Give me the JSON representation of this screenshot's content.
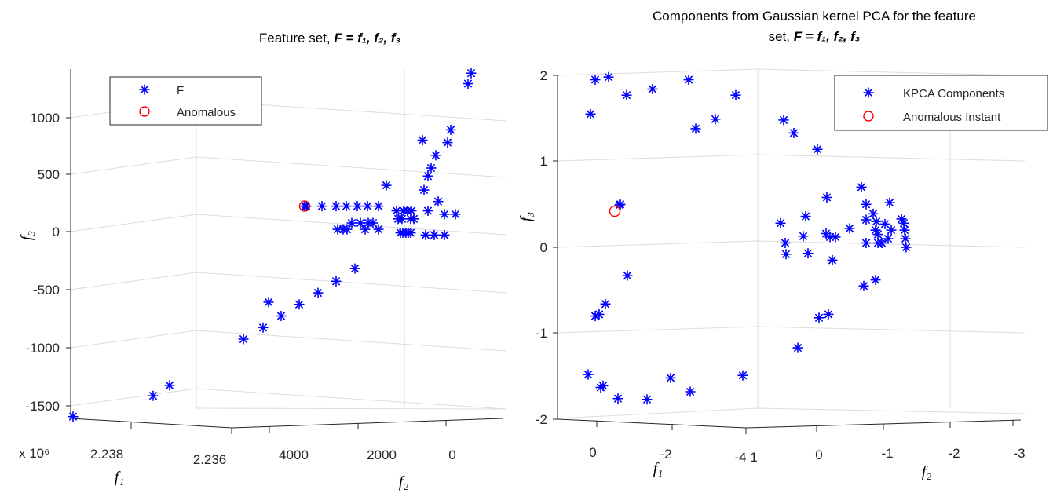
{
  "chart_data": [
    {
      "type": "scatter",
      "title": {
        "prefix": "Feature set, ",
        "formula": "F = f₁, f₂, f₃"
      },
      "xlabel": "f₁",
      "ylabel": "f₂",
      "zlabel": "f₃",
      "exponent_label": "x 10⁶",
      "f1_ticks": [
        "2.238",
        "2.236"
      ],
      "f2_ticks": [
        "4000",
        "2000",
        "0"
      ],
      "f3_ticks": [
        "1000",
        "500",
        "0",
        "-500",
        "-1000",
        "-1500"
      ],
      "legend": {
        "placement": "top-left",
        "entries": [
          "F",
          "Anomalous"
        ]
      },
      "grid": true,
      "series": [
        {
          "name": "F",
          "marker": "asterisk",
          "color": "#0000ff",
          "points": [
            [
              -1600,
              93
            ],
            [
              -1420,
              195
            ],
            [
              -1330,
              216
            ],
            [
              -930,
              310
            ],
            [
              -830,
              335
            ],
            [
              -730,
              358
            ],
            [
              -610,
              342
            ],
            [
              -630,
              381
            ],
            [
              -530,
              405
            ],
            [
              -430,
              428
            ],
            [
              -320,
              452
            ],
            [
              220,
              390
            ],
            [
              220,
              410
            ],
            [
              220,
              428
            ],
            [
              220,
              441
            ],
            [
              220,
              455
            ],
            [
              220,
              468
            ],
            [
              220,
              482
            ],
            [
              75,
              448
            ],
            [
              75,
              459
            ],
            [
              75,
              475
            ],
            [
              75,
              469
            ],
            [
              20,
              430
            ],
            [
              20,
              437
            ],
            [
              20,
              442
            ],
            [
              20,
              465
            ],
            [
              20,
              482
            ],
            [
              400,
              492
            ],
            [
              180,
              505
            ],
            [
              180,
              514
            ],
            [
              180,
              519
            ],
            [
              180,
              524
            ],
            [
              180,
              545
            ],
            [
              110,
              507
            ],
            [
              110,
              512
            ],
            [
              110,
              523
            ],
            [
              110,
              527
            ],
            [
              -10,
              510
            ],
            [
              -10,
              513
            ],
            [
              -10,
              517
            ],
            [
              -10,
              520
            ],
            [
              -10,
              523
            ],
            [
              -30,
              542
            ],
            [
              -30,
              553
            ],
            [
              -30,
              566
            ],
            [
              260,
              558
            ],
            [
              150,
              566
            ],
            [
              150,
              580
            ],
            [
              360,
              540
            ],
            [
              480,
              545
            ],
            [
              550,
              549
            ],
            [
              660,
              555
            ],
            [
              770,
              570
            ],
            [
              790,
              538
            ],
            [
              880,
              574
            ],
            [
              1280,
              596
            ],
            [
              1370,
              600
            ]
          ]
        }
      ],
      "anomalous": [
        [
          220,
          388
        ]
      ]
    },
    {
      "type": "scatter",
      "title": {
        "line1": "Components from Gaussian kernel PCA for the feature",
        "line2_prefix": "set, ",
        "formula": "F = f₁, f₂, f₃"
      },
      "xlabel": "f₁",
      "ylabel": "f₂",
      "zlabel": "f₃",
      "f1_ticks": [
        "0",
        "-2",
        "-4"
      ],
      "f2_ticks": [
        "1",
        "0",
        "-1",
        "-2",
        "-3"
      ],
      "f3_ticks": [
        "2",
        "1",
        "0",
        "-1",
        "-2"
      ],
      "legend": {
        "placement": "top-right",
        "entries": [
          "KPCA Components",
          "Anomalous Instant"
        ]
      },
      "grid": true,
      "series": [
        {
          "name": "KPCA Components",
          "marker": "asterisk",
          "color": "#0000ff",
          "points": [
            [
              1.95,
              758
            ],
            [
              1.98,
              775
            ],
            [
              1.77,
              798
            ],
            [
              1.84,
              831
            ],
            [
              1.95,
              877
            ],
            [
              1.38,
              886
            ],
            [
              1.49,
              911
            ],
            [
              1.77,
              937
            ],
            [
              1.55,
              752
            ],
            [
              1.48,
              998
            ],
            [
              1.33,
              1011
            ],
            [
              1.14,
              1041
            ],
            [
              0.5,
              790
            ],
            [
              -0.33,
              799
            ],
            [
              -0.66,
              771
            ],
            [
              -0.78,
              763
            ],
            [
              -0.8,
              758
            ],
            [
              -0.82,
              1043
            ],
            [
              -0.78,
              1055
            ],
            [
              -1.17,
              1016
            ],
            [
              -1.48,
              749
            ],
            [
              -1.63,
              765
            ],
            [
              -1.61,
              768
            ],
            [
              -1.76,
              787
            ],
            [
              -1.77,
              824
            ],
            [
              -1.52,
              854
            ],
            [
              -1.68,
              879
            ],
            [
              -1.49,
              946
            ],
            [
              0.28,
              994
            ],
            [
              0.05,
              1000
            ],
            [
              -0.08,
              1001
            ],
            [
              0.36,
              1026
            ],
            [
              0.13,
              1023
            ],
            [
              -0.07,
              1029
            ],
            [
              0.58,
              1053
            ],
            [
              0.16,
              1052
            ],
            [
              0.12,
              1057
            ],
            [
              0.12,
              1064
            ],
            [
              -0.15,
              1060
            ],
            [
              0.22,
              1082
            ],
            [
              0.7,
              1097
            ],
            [
              0.5,
              1103
            ],
            [
              0.32,
              1103
            ],
            [
              0.05,
              1103
            ],
            [
              -0.45,
              1100
            ],
            [
              0.39,
              1112
            ],
            [
              0.3,
              1116
            ],
            [
              0.2,
              1115
            ],
            [
              0.15,
              1118
            ],
            [
              0.05,
              1118
            ],
            [
              -0.38,
              1115
            ],
            [
              0.52,
              1133
            ],
            [
              0.27,
              1127
            ],
            [
              0.05,
              1123
            ],
            [
              0.1,
              1131
            ],
            [
              0.2,
              1135
            ],
            [
              0.33,
              1148
            ],
            [
              0.28,
              1151
            ],
            [
              0.2,
              1152
            ],
            [
              0.1,
              1153
            ],
            [
              0.0,
              1154
            ]
          ]
        }
      ],
      "anomalous": [
        [
          0.42,
          783
        ]
      ]
    }
  ]
}
